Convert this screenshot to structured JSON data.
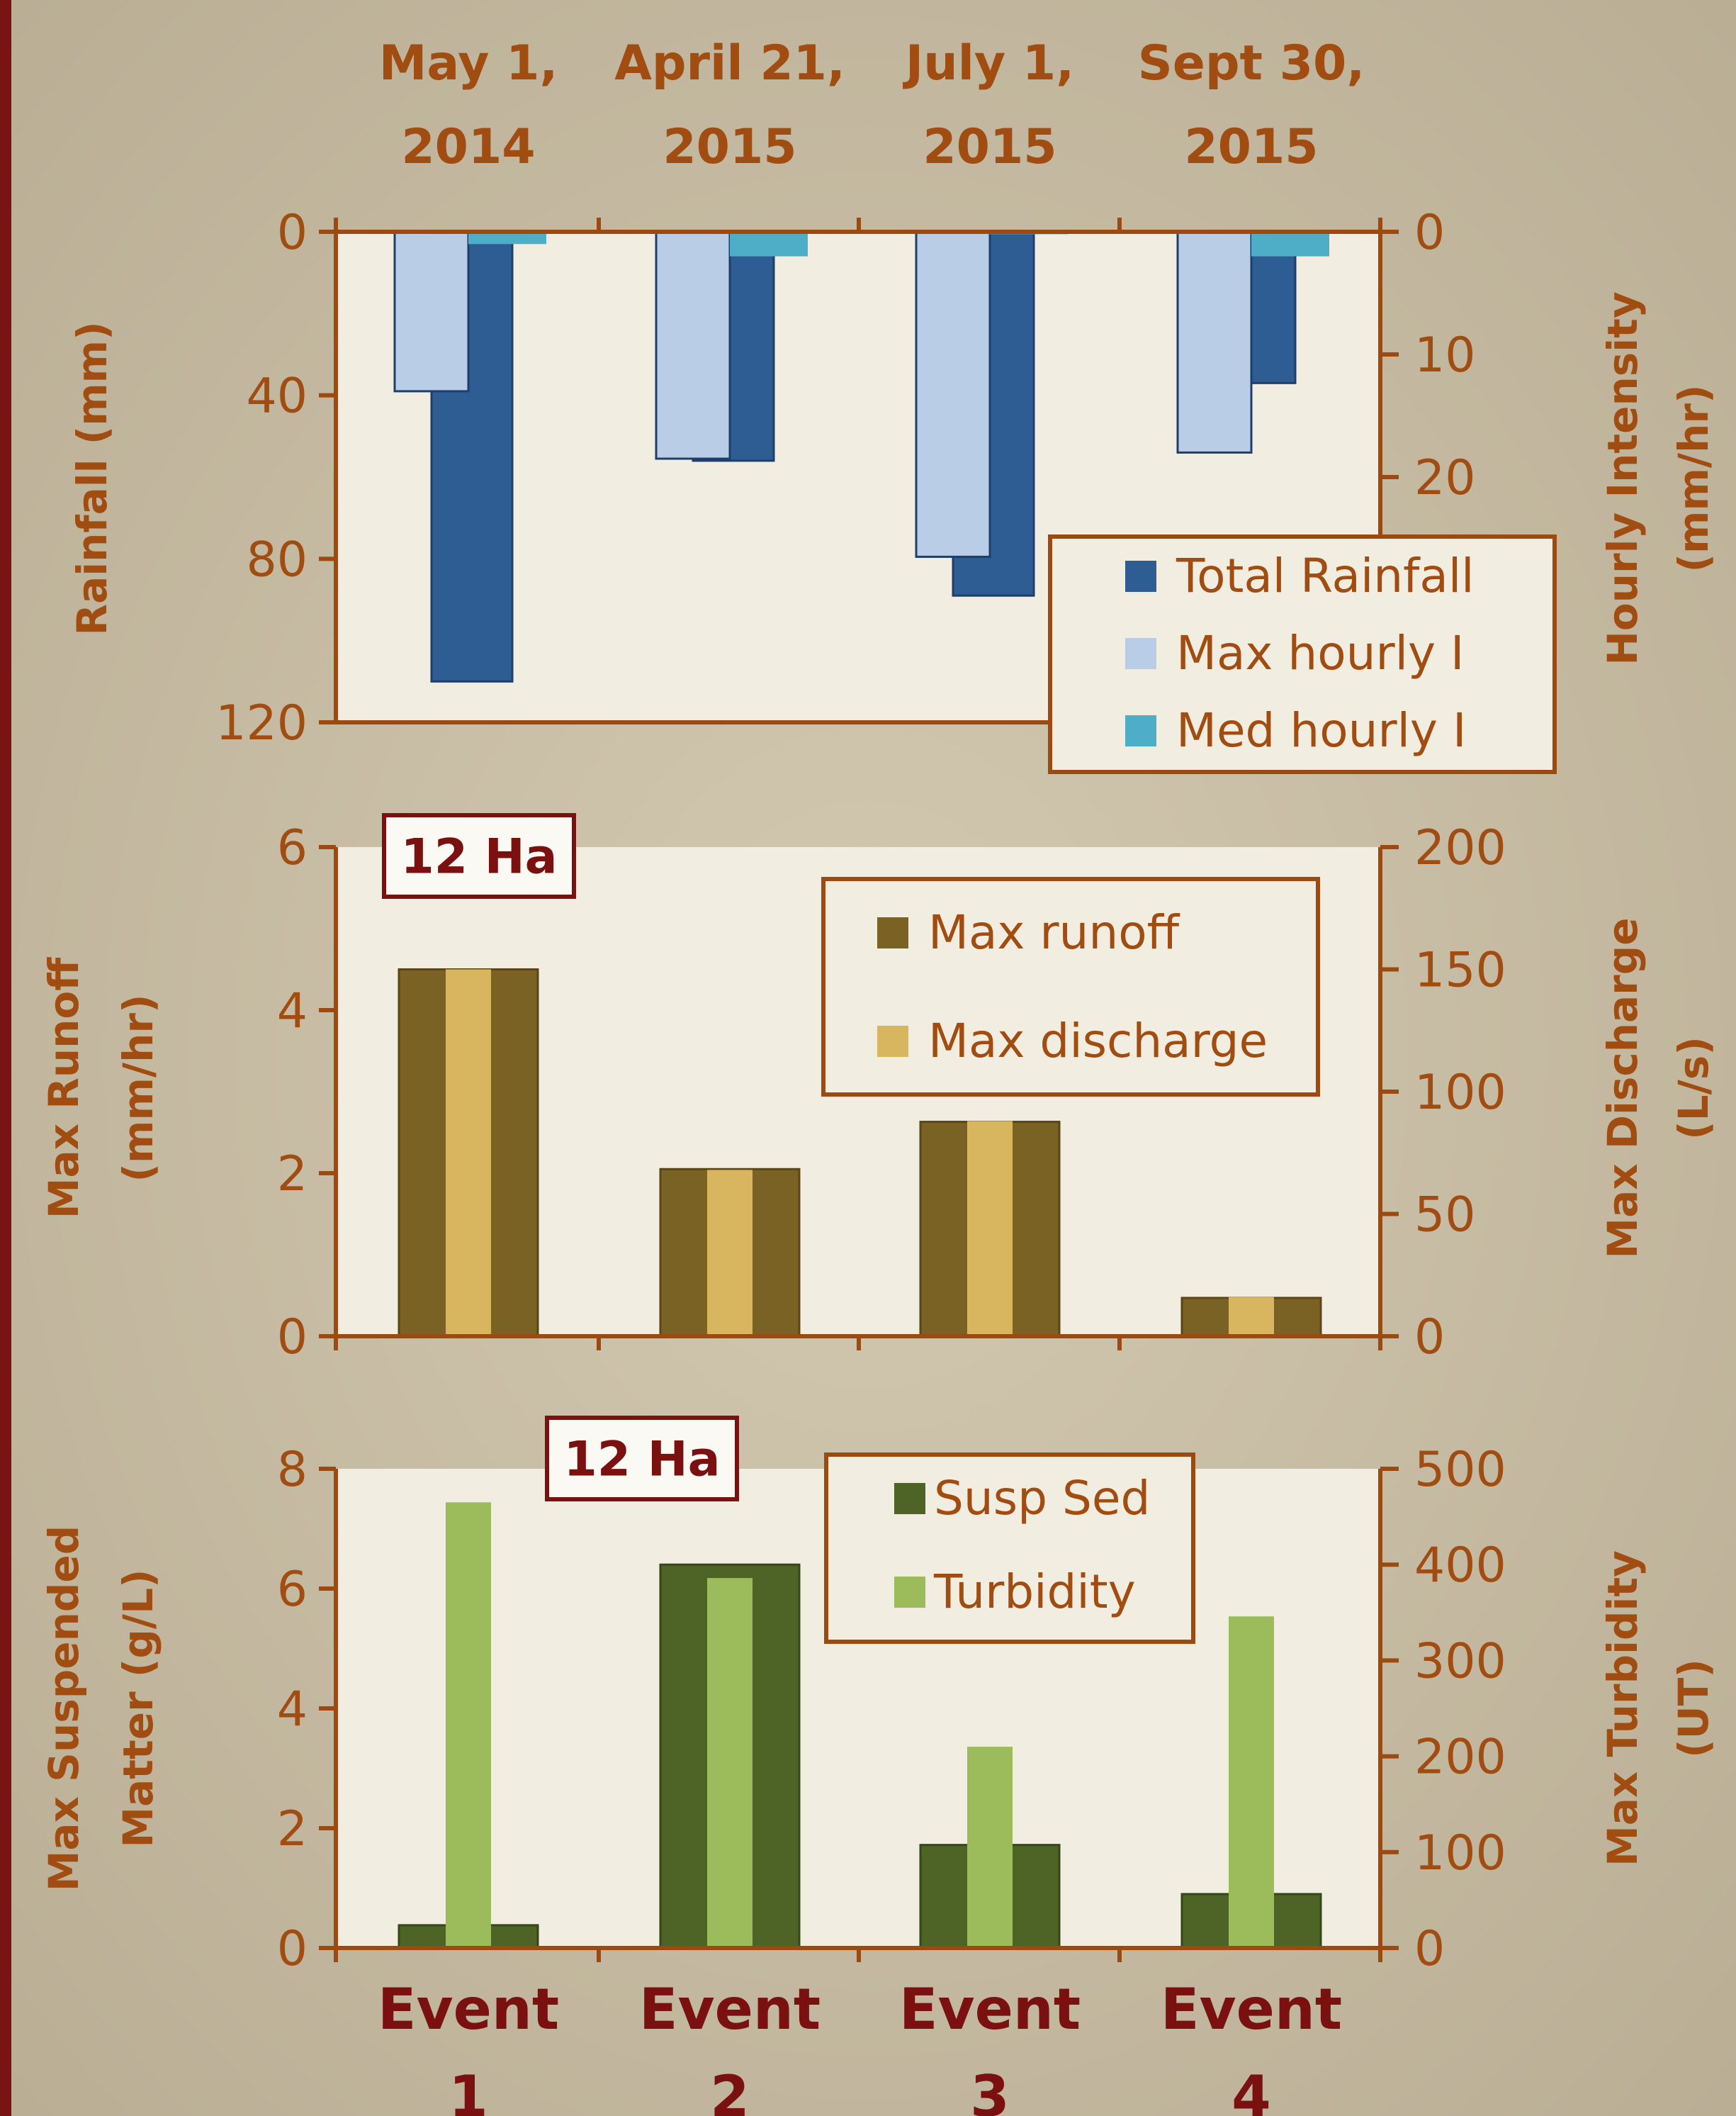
{
  "events": {
    "dates": [
      {
        "line1": "May 1,",
        "line2": "2014"
      },
      {
        "line1": "April 21,",
        "line2": "2015"
      },
      {
        "line1": "July 1,",
        "line2": "2015"
      },
      {
        "line1": "Sept 30,",
        "line2": "2015"
      }
    ],
    "labels": [
      {
        "line1": "Event",
        "line2": "1"
      },
      {
        "line1": "Event",
        "line2": "2"
      },
      {
        "line1": "Event",
        "line2": "3"
      },
      {
        "line1": "Event",
        "line2": "4"
      }
    ]
  },
  "colors": {
    "axis": "#9c4a10",
    "label": "#a14d12",
    "title_dark": "#7a1010",
    "plot_bg": "#f1ede0",
    "page_bg": "#c9bfa6",
    "left_rule": "#7a1414"
  },
  "chart_data": [
    {
      "type": "bar",
      "categories": [
        "Event 1",
        "Event 2",
        "Event 3",
        "Event 4"
      ],
      "orientation": "inverted",
      "grid": false,
      "ylabel_left": "Rainfall (mm)",
      "ylabel_right_line1": "Hourly Intensity",
      "ylabel_right_line2": "(mm/hr)",
      "ylim_left": [
        0,
        120
      ],
      "ylim_right": [
        0,
        40
      ],
      "yticks_left": [
        "0",
        "40",
        "80",
        "120"
      ],
      "yticks_right": [
        "0",
        "10",
        "20"
      ],
      "legend_position": "bottom-right",
      "series": [
        {
          "name": "Total Rainfall",
          "axis": "left",
          "color": "#2e5d94",
          "values": [
            110,
            56,
            89,
            37
          ]
        },
        {
          "name": "Max hourly I",
          "axis": "right",
          "color": "#b9cde6",
          "values": [
            13,
            18.5,
            26.5,
            18
          ]
        },
        {
          "name": "Med hourly I",
          "axis": "right",
          "color": "#4eaec8",
          "values": [
            1,
            2,
            0.2,
            2
          ]
        }
      ]
    },
    {
      "type": "bar",
      "categories": [
        "Event 1",
        "Event 2",
        "Event 3",
        "Event 4"
      ],
      "grid": false,
      "annotation": "12 Ha",
      "ylabel_left_line1": "Max Runoff",
      "ylabel_left_line2": "(mm/hr)",
      "ylabel_right_line1": "Max Discharge",
      "ylabel_right_line2": "(L/s)",
      "ylim_left": [
        0,
        6
      ],
      "ylim_right": [
        0,
        200
      ],
      "yticks_left": [
        "0",
        "2",
        "4",
        "6"
      ],
      "yticks_right": [
        "0",
        "50",
        "100",
        "150",
        "200"
      ],
      "legend_position": "top-right",
      "series": [
        {
          "name": "Max runoff",
          "axis": "left",
          "color": "#7a6225",
          "values": [
            4.5,
            2.05,
            2.63,
            0.47
          ]
        },
        {
          "name": "Max discharge",
          "axis": "right",
          "color": "#d8b660",
          "values": [
            150,
            68,
            88,
            16
          ]
        }
      ]
    },
    {
      "type": "bar",
      "categories": [
        "Event 1",
        "Event 2",
        "Event 3",
        "Event 4"
      ],
      "grid": false,
      "annotation": "12 Ha",
      "ylabel_left_line1": "Max Suspended",
      "ylabel_left_line2": "Matter (g/L)",
      "ylabel_right_line1": "Max Turbidity",
      "ylabel_right_line2": "(UT)",
      "ylim_left": [
        0,
        8
      ],
      "ylim_right": [
        0,
        500
      ],
      "yticks_left": [
        "0",
        "2",
        "4",
        "6",
        "8"
      ],
      "yticks_right": [
        "0",
        "100",
        "200",
        "300",
        "400",
        "500"
      ],
      "legend_position": "top-right",
      "series": [
        {
          "name": "Susp Sed",
          "axis": "left",
          "color": "#4e6427",
          "values": [
            0.38,
            6.4,
            1.72,
            0.9
          ]
        },
        {
          "name": "Turbidity",
          "axis": "right",
          "color": "#9cbc5c",
          "values": [
            465,
            386,
            210,
            346
          ]
        }
      ]
    }
  ]
}
